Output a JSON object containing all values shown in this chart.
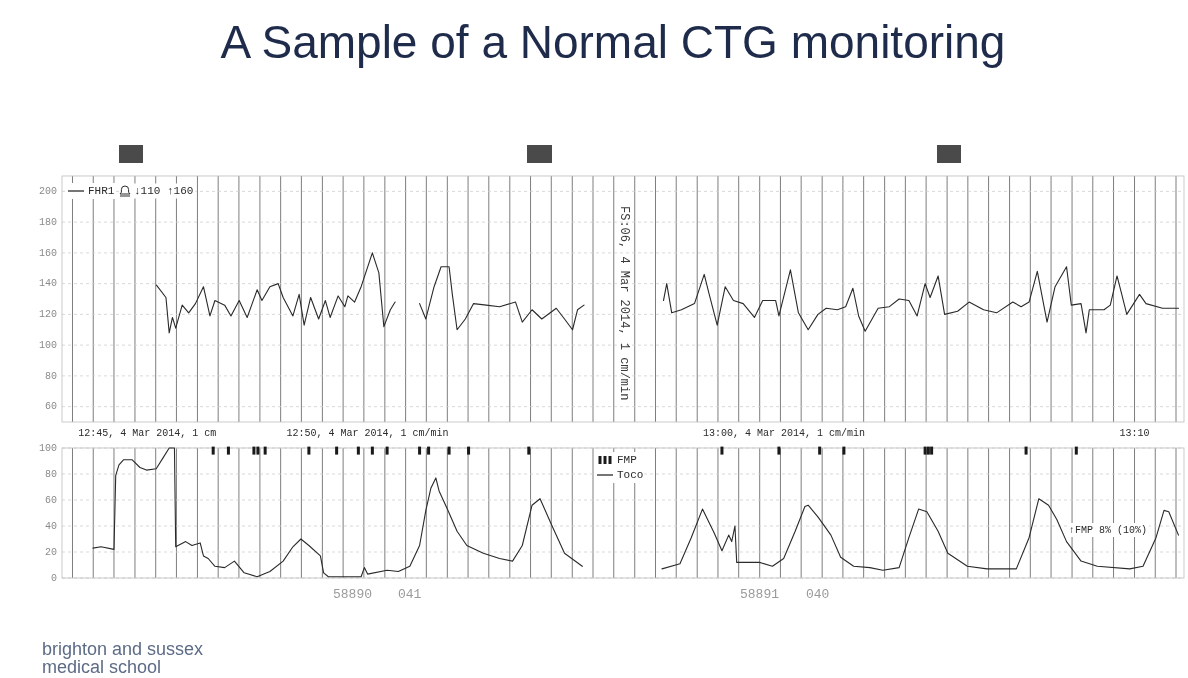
{
  "chart_data": [
    {
      "type": "line",
      "title": "A Sample of a Normal CTG monitoring",
      "annotations": [
        "↓110 ↑160",
        "FS:06, 4 Mar 2014, 1 cm/min",
        ", 4 Mar 2014, 1 cm",
        ", 4 Mar 2014, 1 cm/min",
        ", 4 Mar 2014, 1 cm/min"
      ],
      "xlim": [
        12.7375,
        13.1865
      ],
      "xticks": [
        {
          "value": 12.7417,
          "label": null
        },
        {
          "value": 12.75,
          "label": "12:45"
        },
        {
          "value": 12.7583,
          "label": null
        },
        {
          "value": 12.7667,
          "label": null
        },
        {
          "value": 12.775,
          "label": null
        },
        {
          "value": 12.7833,
          "label": null
        },
        {
          "value": 12.7917,
          "label": null
        },
        {
          "value": 12.8,
          "label": null
        },
        {
          "value": 12.8083,
          "label": null
        },
        {
          "value": 12.8167,
          "label": null
        },
        {
          "value": 12.825,
          "label": null
        },
        {
          "value": 12.8333,
          "label": "12:50"
        },
        {
          "value": 12.8417,
          "label": null
        },
        {
          "value": 12.85,
          "label": null
        },
        {
          "value": 12.8583,
          "label": null
        },
        {
          "value": 12.8667,
          "label": null
        },
        {
          "value": 12.875,
          "label": null
        },
        {
          "value": 12.8833,
          "label": null
        },
        {
          "value": 12.8917,
          "label": null
        },
        {
          "value": 12.9,
          "label": null
        },
        {
          "value": 12.9083,
          "label": null
        },
        {
          "value": 12.9167,
          "label": null
        },
        {
          "value": 12.925,
          "label": null
        },
        {
          "value": 12.9333,
          "label": null
        },
        {
          "value": 12.9417,
          "label": null
        },
        {
          "value": 12.95,
          "label": null
        },
        {
          "value": 12.9583,
          "label": null
        },
        {
          "value": 12.9667,
          "label": null
        },
        {
          "value": 12.975,
          "label": null
        },
        {
          "value": 12.9833,
          "label": null
        },
        {
          "value": 12.9917,
          "label": null
        },
        {
          "value": 13,
          "label": "13:00"
        },
        {
          "value": 13.0083,
          "label": null
        },
        {
          "value": 13.0167,
          "label": null
        },
        {
          "value": 13.025,
          "label": null
        },
        {
          "value": 13.0333,
          "label": null
        },
        {
          "value": 13.0417,
          "label": null
        },
        {
          "value": 13.05,
          "label": null
        },
        {
          "value": 13.0583,
          "label": null
        },
        {
          "value": 13.0667,
          "label": null
        },
        {
          "value": 13.075,
          "label": null
        },
        {
          "value": 13.0833,
          "label": null
        },
        {
          "value": 13.0917,
          "label": null
        },
        {
          "value": 13.1,
          "label": null
        },
        {
          "value": 13.1083,
          "label": null
        },
        {
          "value": 13.1167,
          "label": null
        },
        {
          "value": 13.125,
          "label": null
        },
        {
          "value": 13.1333,
          "label": null
        },
        {
          "value": 13.1417,
          "label": null
        },
        {
          "value": 13.15,
          "label": null
        },
        {
          "value": 13.1583,
          "label": null
        },
        {
          "value": 13.1667,
          "label": "13:10"
        },
        {
          "value": 13.175,
          "label": null
        },
        {
          "value": 13.1833,
          "label": null
        }
      ],
      "ylim": [
        50,
        210
      ],
      "yticks": [
        60,
        80,
        100,
        120,
        140,
        160,
        180,
        200
      ],
      "grid": true,
      "legend": "top left",
      "series": [
        {
          "name": "FHR1",
          "color": "#2a2a2a",
          "x": [
            12.7753,
            12.7791,
            12.7804,
            12.7817,
            12.783,
            12.7856,
            12.7882,
            12.7909,
            12.7941,
            12.7967,
            12.7987,
            12.8026,
            12.8051,
            12.8084,
            12.8116,
            12.8156,
            12.8175,
            12.8207,
            12.824,
            12.826,
            12.8299,
            12.8324,
            12.8344,
            12.837,
            12.8402,
            12.8429,
            12.8448,
            12.848,
            12.8507,
            12.8519,
            12.8546,
            12.8572,
            12.8617,
            12.8643,
            12.8663,
            12.8689,
            12.8708,
            12.8756,
            12.8806,
            12.8831,
            12.8864,
            12.8892,
            12.8924,
            12.8937,
            12.8956,
            12.8989,
            12.9022,
            12.9073,
            12.9126,
            12.919,
            12.9217,
            12.9256,
            12.9295,
            12.9353,
            12.9386,
            12.9418,
            12.9438,
            12.9464,
            12.9626,
            12.9782,
            12.9795,
            12.9815,
            12.9854,
            12.9906,
            12.9945,
            12.9965,
            12.9997,
            13.0029,
            13.0062,
            13.0101,
            13.0146,
            13.0179,
            13.0231,
            13.0244,
            13.029,
            13.0322,
            13.0361,
            13.04,
            13.0433,
            13.0478,
            13.0511,
            13.054,
            13.0563,
            13.0589,
            13.0641,
            13.0686,
            13.0725,
            13.0764,
            13.0797,
            13.0829,
            13.0849,
            13.0881,
            13.0907,
            13.0959,
            13.1005,
            13.1063,
            13.1115,
            13.118,
            13.1213,
            13.1245,
            13.1278,
            13.1317,
            13.1349,
            13.1395,
            13.1414,
            13.1453,
            13.1473,
            13.1486,
            13.1545,
            13.157,
            13.1597,
            13.1616,
            13.1636,
            13.1687,
            13.1713,
            13.1779,
            13.1843
          ],
          "values": [
            139,
            131,
            108,
            118,
            111,
            126,
            121,
            127,
            138,
            119,
            129,
            126,
            119,
            129,
            118,
            136,
            129,
            138,
            140,
            131,
            119,
            133,
            113,
            131,
            117,
            129,
            118,
            132,
            125,
            132,
            128,
            138,
            160,
            147,
            112,
            123,
            128,
            null,
            127,
            117,
            138,
            151,
            151,
            133,
            110,
            117,
            127,
            126,
            125,
            128,
            115,
            123,
            117,
            124,
            117,
            110,
            123,
            126,
            null,
            129,
            140,
            121,
            123,
            127,
            146,
            133,
            113,
            138,
            129,
            127,
            118,
            129,
            129,
            119,
            149,
            121,
            110,
            120,
            124,
            123,
            125,
            137,
            119,
            109,
            124,
            125,
            130,
            129,
            119,
            140,
            131,
            145,
            120,
            122,
            128,
            123,
            121,
            128,
            125,
            128,
            148,
            115,
            138,
            151,
            126,
            127,
            108,
            123,
            123,
            126,
            145,
            133,
            120,
            133,
            127,
            124,
            124
          ]
        }
      ]
    },
    {
      "type": "line",
      "annotations": [
        "58890",
        "041",
        "58891",
        "040",
        "brighton and sussex medical school",
        "↑FMP 8% (10%)"
      ],
      "xlim": [
        12.7375,
        13.1865
      ],
      "ylim": [
        0,
        100
      ],
      "yticks": [
        0,
        20,
        40,
        60,
        80,
        100
      ],
      "grid": true,
      "legend": "top",
      "tick_labels": "y",
      "series": [
        {
          "name": "FMP",
          "type": "scatter",
          "marker": "square",
          "color": "#1a1a1a",
          "x": [
            12.798,
            12.8041,
            12.8143,
            12.8159,
            12.8188,
            12.8363,
            12.8474,
            12.8561,
            12.8617,
            12.8676,
            12.8806,
            12.8842,
            12.8924,
            12.9002,
            12.9243,
            13.0016,
            13.0244,
            13.0407,
            13.0504,
            13.0829,
            13.0842,
            13.0855,
            13.1233,
            13.1434
          ],
          "values": [
            98,
            98,
            98,
            98,
            98,
            98,
            98,
            98,
            98,
            98,
            98,
            98,
            98,
            98,
            98,
            98,
            98,
            98,
            98,
            98,
            98,
            98,
            98,
            98
          ]
        },
        {
          "name": "Toco",
          "color": "#2a2a2a",
          "x": [
            12.7499,
            12.7531,
            12.7583,
            12.759,
            12.7603,
            12.7622,
            12.7655,
            12.7687,
            12.7713,
            12.7752,
            12.7778,
            12.7804,
            12.7825,
            12.783,
            12.787,
            12.7895,
            12.7928,
            12.7941,
            12.796,
            12.7987,
            12.8026,
            12.8065,
            12.8104,
            12.8156,
            12.8207,
            12.826,
            12.8299,
            12.8331,
            12.8363,
            12.8409,
            12.8422,
            12.8441,
            12.8572,
            12.8585,
            12.8598,
            12.8676,
            12.8721,
            12.8767,
            12.8806,
            12.8831,
            12.8851,
            12.8871,
            12.8884,
            12.8917,
            12.8956,
            12.8995,
            12.9061,
            12.9126,
            12.9178,
            12.9217,
            12.9256,
            12.9288,
            12.9334,
            12.9386,
            12.9457,
            12.9626,
            12.9776,
            12.9848,
            12.9893,
            12.9938,
            12.9984,
            13.0016,
            13.0043,
            13.0055,
            13.0068,
            13.0075,
            13.0166,
            13.0218,
            13.0263,
            13.0309,
            13.0348,
            13.0361,
            13.04,
            13.0452,
            13.0491,
            13.0543,
            13.0608,
            13.066,
            13.0725,
            13.0764,
            13.0803,
            13.0836,
            13.0881,
            13.092,
            13.0998,
            13.1077,
            13.1194,
            13.1245,
            13.1284,
            13.1323,
            13.1356,
            13.1395,
            13.1453,
            13.1518,
            13.1648,
            13.1701,
            13.1753,
            13.1785,
            13.1804,
            13.1843
          ],
          "values": [
            23,
            24,
            22,
            79,
            87,
            91,
            91,
            85,
            83,
            84,
            92,
            100,
            100,
            24,
            28,
            25,
            27,
            17,
            15,
            9,
            8,
            13,
            4,
            1,
            5,
            13,
            24,
            30,
            25,
            17,
            4,
            1,
            1,
            8,
            3,
            6,
            5,
            9,
            25,
            52,
            69,
            77,
            67,
            53,
            36,
            25,
            19,
            15,
            13,
            25,
            56,
            61,
            41,
            19,
            9,
            null,
            7,
            11,
            31,
            53,
            35,
            21,
            33,
            28,
            40,
            12,
            12,
            9,
            15,
            36,
            55,
            56,
            47,
            33,
            16,
            9,
            8,
            6,
            8,
            31,
            53,
            51,
            36,
            19,
            9,
            7,
            7,
            31,
            61,
            56,
            45,
            28,
            13,
            9,
            7,
            9,
            31,
            52,
            51,
            33
          ]
        }
      ]
    }
  ]
}
